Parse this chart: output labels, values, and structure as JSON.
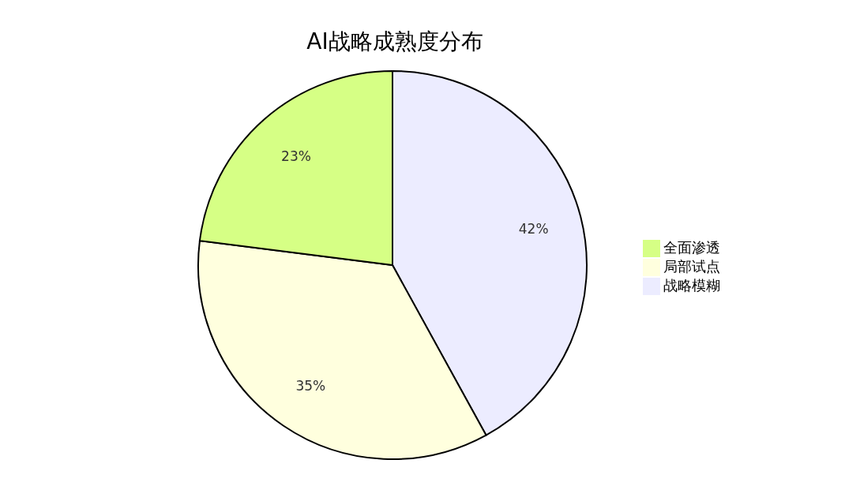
{
  "chart_data": {
    "type": "pie",
    "title": "AI战略成熟度分布",
    "categories": [
      "战略模糊",
      "局部试点",
      "全面渗透"
    ],
    "values": [
      42,
      35,
      23
    ],
    "colors": [
      "#ececff",
      "#ffffde",
      "#d6ff85"
    ],
    "value_labels": [
      "42%",
      "35%",
      "23%"
    ],
    "legend": "right"
  }
}
